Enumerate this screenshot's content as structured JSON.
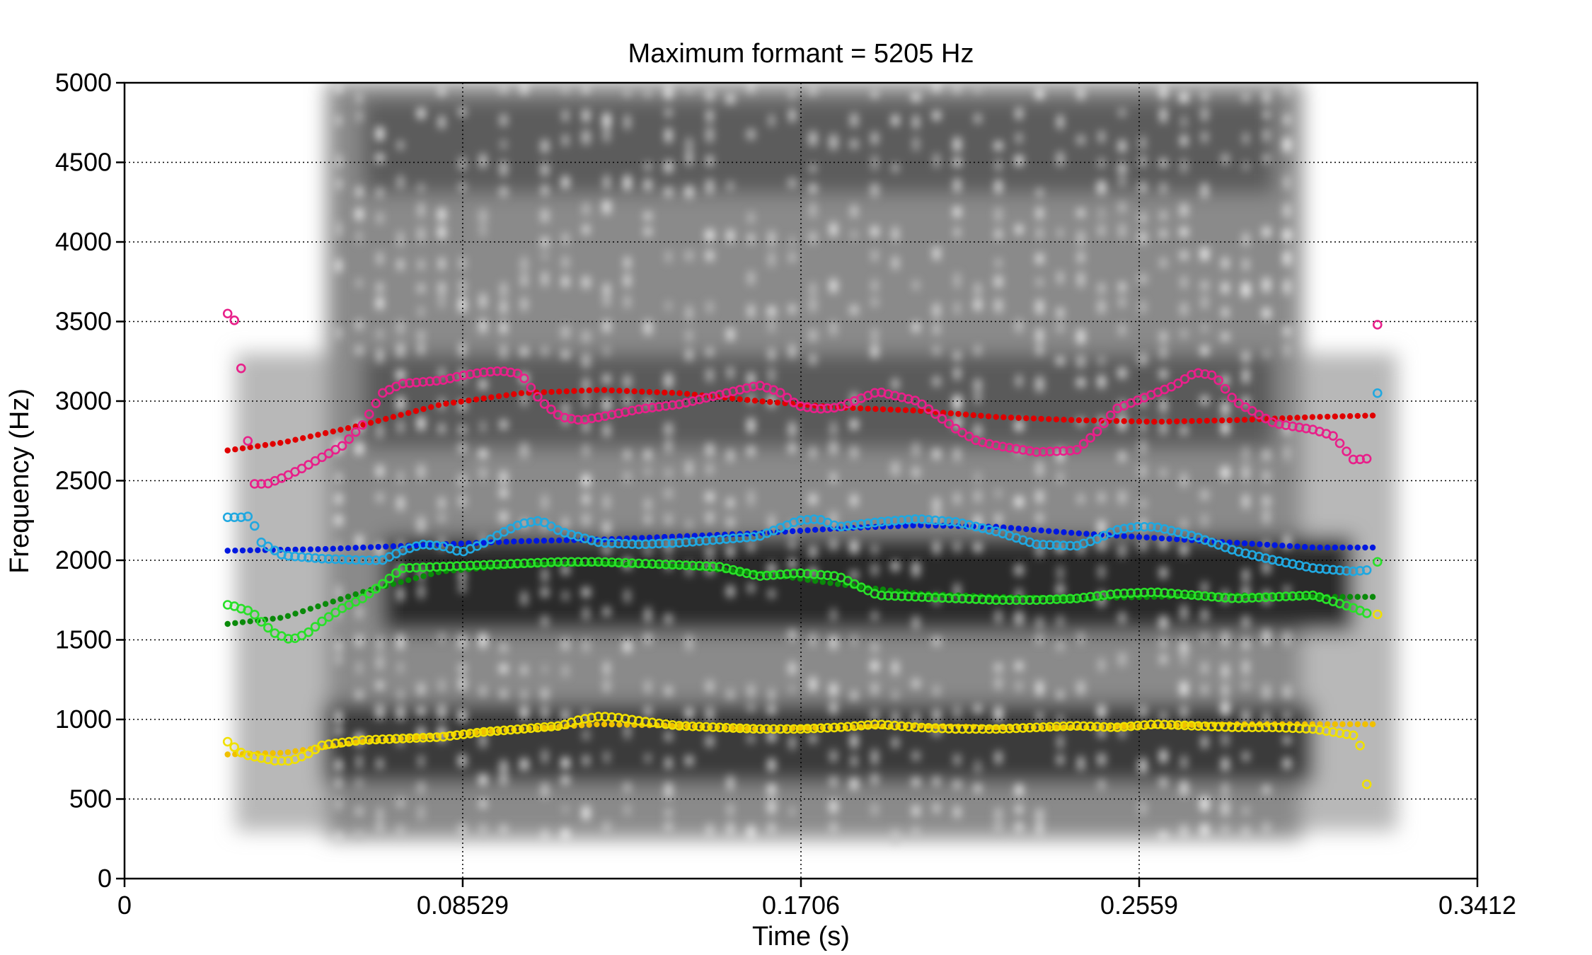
{
  "chart_data": {
    "type": "scatter",
    "title": "Maximum formant = 5205 Hz",
    "xlabel": "Time (s)",
    "ylabel": "Frequency (Hz)",
    "xlim": [
      0,
      0.3412
    ],
    "ylim": [
      0,
      5000
    ],
    "x_ticks": [
      "0",
      "0.08529",
      "0.1706",
      "0.2559",
      "0.3412"
    ],
    "x_tick_values": [
      0,
      0.08529,
      0.1706,
      0.2559,
      0.3412
    ],
    "y_ticks": [
      "0",
      "500",
      "1000",
      "1500",
      "2000",
      "2500",
      "3000",
      "3500",
      "4000",
      "4500",
      "5000"
    ],
    "y_tick_values": [
      0,
      500,
      1000,
      1500,
      2000,
      2500,
      3000,
      3500,
      4000,
      4500,
      5000
    ],
    "grid": true,
    "background": "grayscale spectrogram",
    "spectrogram_extent": {
      "t_start": 0.051,
      "t_end": 0.297
    },
    "series": [
      {
        "style": "dots",
        "color": "#e00000",
        "x": [
          0.026,
          0.04,
          0.06,
          0.08,
          0.1,
          0.12,
          0.14,
          0.16,
          0.18,
          0.2,
          0.22,
          0.24,
          0.26,
          0.28,
          0.3,
          0.316
        ],
        "y": [
          2690,
          2740,
          2850,
          2980,
          3050,
          3070,
          3050,
          3000,
          2960,
          2940,
          2900,
          2880,
          2870,
          2880,
          2900,
          2910
        ]
      },
      {
        "style": "dots",
        "color": "#0018e0",
        "x": [
          0.026,
          0.05,
          0.08,
          0.1,
          0.12,
          0.14,
          0.16,
          0.18,
          0.2,
          0.22,
          0.24,
          0.26,
          0.28,
          0.3,
          0.316
        ],
        "y": [
          2060,
          2070,
          2100,
          2120,
          2130,
          2150,
          2170,
          2200,
          2220,
          2210,
          2170,
          2140,
          2110,
          2080,
          2080
        ]
      },
      {
        "style": "dots",
        "color": "#0a8a0a",
        "x": [
          0.026,
          0.04,
          0.06,
          0.08,
          0.1,
          0.12,
          0.14,
          0.16,
          0.18,
          0.2,
          0.22,
          0.24,
          0.26,
          0.28,
          0.3,
          0.316
        ],
        "y": [
          1600,
          1640,
          1800,
          1930,
          1970,
          1980,
          1960,
          1920,
          1850,
          1790,
          1770,
          1760,
          1770,
          1780,
          1770,
          1770
        ]
      },
      {
        "style": "dots",
        "color": "#f0c000",
        "x": [
          0.026,
          0.04,
          0.06,
          0.08,
          0.1,
          0.12,
          0.14,
          0.16,
          0.18,
          0.2,
          0.22,
          0.24,
          0.26,
          0.28,
          0.3,
          0.316
        ],
        "y": [
          780,
          790,
          860,
          900,
          940,
          970,
          960,
          940,
          950,
          960,
          950,
          950,
          960,
          970,
          970,
          970
        ]
      },
      {
        "style": "circles",
        "color": "#e8208a",
        "x": [
          0.026,
          0.028,
          0.03,
          0.032,
          0.036,
          0.04,
          0.045,
          0.05,
          0.055,
          0.06,
          0.065,
          0.07,
          0.075,
          0.08,
          0.085,
          0.09,
          0.095,
          0.1,
          0.105,
          0.11,
          0.115,
          0.12,
          0.13,
          0.14,
          0.15,
          0.16,
          0.165,
          0.17,
          0.175,
          0.18,
          0.19,
          0.2,
          0.21,
          0.215,
          0.22,
          0.23,
          0.24,
          0.245,
          0.25,
          0.255,
          0.26,
          0.265,
          0.27,
          0.275,
          0.28,
          0.29,
          0.3,
          0.305,
          0.31,
          0.314,
          0.316
        ],
        "y": [
          3550,
          3500,
          3080,
          2480,
          2480,
          2520,
          2580,
          2650,
          2720,
          2850,
          3050,
          3110,
          3120,
          3130,
          3160,
          3180,
          3190,
          3170,
          3000,
          2900,
          2880,
          2900,
          2950,
          2980,
          3040,
          3100,
          3060,
          2970,
          2950,
          2960,
          3060,
          3000,
          2820,
          2750,
          2720,
          2680,
          2690,
          2800,
          2950,
          3000,
          3050,
          3100,
          3180,
          3160,
          3000,
          2860,
          2820,
          2780,
          2630,
          2640,
          3480
        ]
      },
      {
        "style": "circles",
        "color": "#20a8e0",
        "x": [
          0.026,
          0.028,
          0.03,
          0.032,
          0.034,
          0.04,
          0.05,
          0.06,
          0.065,
          0.07,
          0.075,
          0.08,
          0.085,
          0.09,
          0.095,
          0.1,
          0.105,
          0.11,
          0.12,
          0.13,
          0.14,
          0.15,
          0.16,
          0.17,
          0.175,
          0.18,
          0.19,
          0.2,
          0.21,
          0.22,
          0.23,
          0.24,
          0.245,
          0.25,
          0.255,
          0.26,
          0.27,
          0.28,
          0.29,
          0.3,
          0.31,
          0.314,
          0.316
        ],
        "y": [
          2270,
          2270,
          2270,
          2280,
          2120,
          2030,
          2010,
          2000,
          2000,
          2060,
          2100,
          2090,
          2050,
          2100,
          2170,
          2230,
          2250,
          2180,
          2110,
          2100,
          2110,
          2130,
          2150,
          2250,
          2260,
          2210,
          2240,
          2260,
          2240,
          2180,
          2100,
          2090,
          2130,
          2190,
          2210,
          2210,
          2150,
          2060,
          2000,
          1950,
          1930,
          1940,
          3050
        ]
      },
      {
        "style": "circles",
        "color": "#28e028",
        "x": [
          0.026,
          0.028,
          0.03,
          0.032,
          0.035,
          0.038,
          0.042,
          0.046,
          0.05,
          0.055,
          0.06,
          0.065,
          0.07,
          0.08,
          0.09,
          0.1,
          0.11,
          0.12,
          0.13,
          0.14,
          0.15,
          0.16,
          0.17,
          0.18,
          0.185,
          0.19,
          0.2,
          0.21,
          0.22,
          0.23,
          0.24,
          0.25,
          0.26,
          0.27,
          0.28,
          0.29,
          0.3,
          0.31,
          0.314,
          0.316
        ],
        "y": [
          1720,
          1710,
          1690,
          1680,
          1600,
          1540,
          1500,
          1540,
          1620,
          1700,
          1760,
          1850,
          1950,
          1960,
          1970,
          1980,
          1990,
          1990,
          1980,
          1970,
          1960,
          1900,
          1920,
          1900,
          1840,
          1780,
          1770,
          1760,
          1750,
          1750,
          1760,
          1790,
          1800,
          1780,
          1760,
          1770,
          1780,
          1700,
          1660,
          1990
        ]
      },
      {
        "style": "circles",
        "color": "#f0e000",
        "x": [
          0.026,
          0.028,
          0.03,
          0.034,
          0.038,
          0.042,
          0.046,
          0.05,
          0.06,
          0.07,
          0.08,
          0.09,
          0.1,
          0.11,
          0.115,
          0.12,
          0.125,
          0.13,
          0.14,
          0.15,
          0.16,
          0.17,
          0.18,
          0.19,
          0.2,
          0.21,
          0.22,
          0.23,
          0.24,
          0.25,
          0.26,
          0.27,
          0.28,
          0.29,
          0.3,
          0.31,
          0.312,
          0.314,
          0.316
        ],
        "y": [
          860,
          820,
          780,
          760,
          740,
          740,
          780,
          840,
          870,
          880,
          890,
          920,
          940,
          960,
          1000,
          1020,
          1010,
          990,
          960,
          950,
          940,
          940,
          950,
          970,
          950,
          940,
          940,
          950,
          960,
          950,
          970,
          960,
          950,
          950,
          940,
          900,
          820,
          470,
          1660
        ]
      }
    ]
  }
}
